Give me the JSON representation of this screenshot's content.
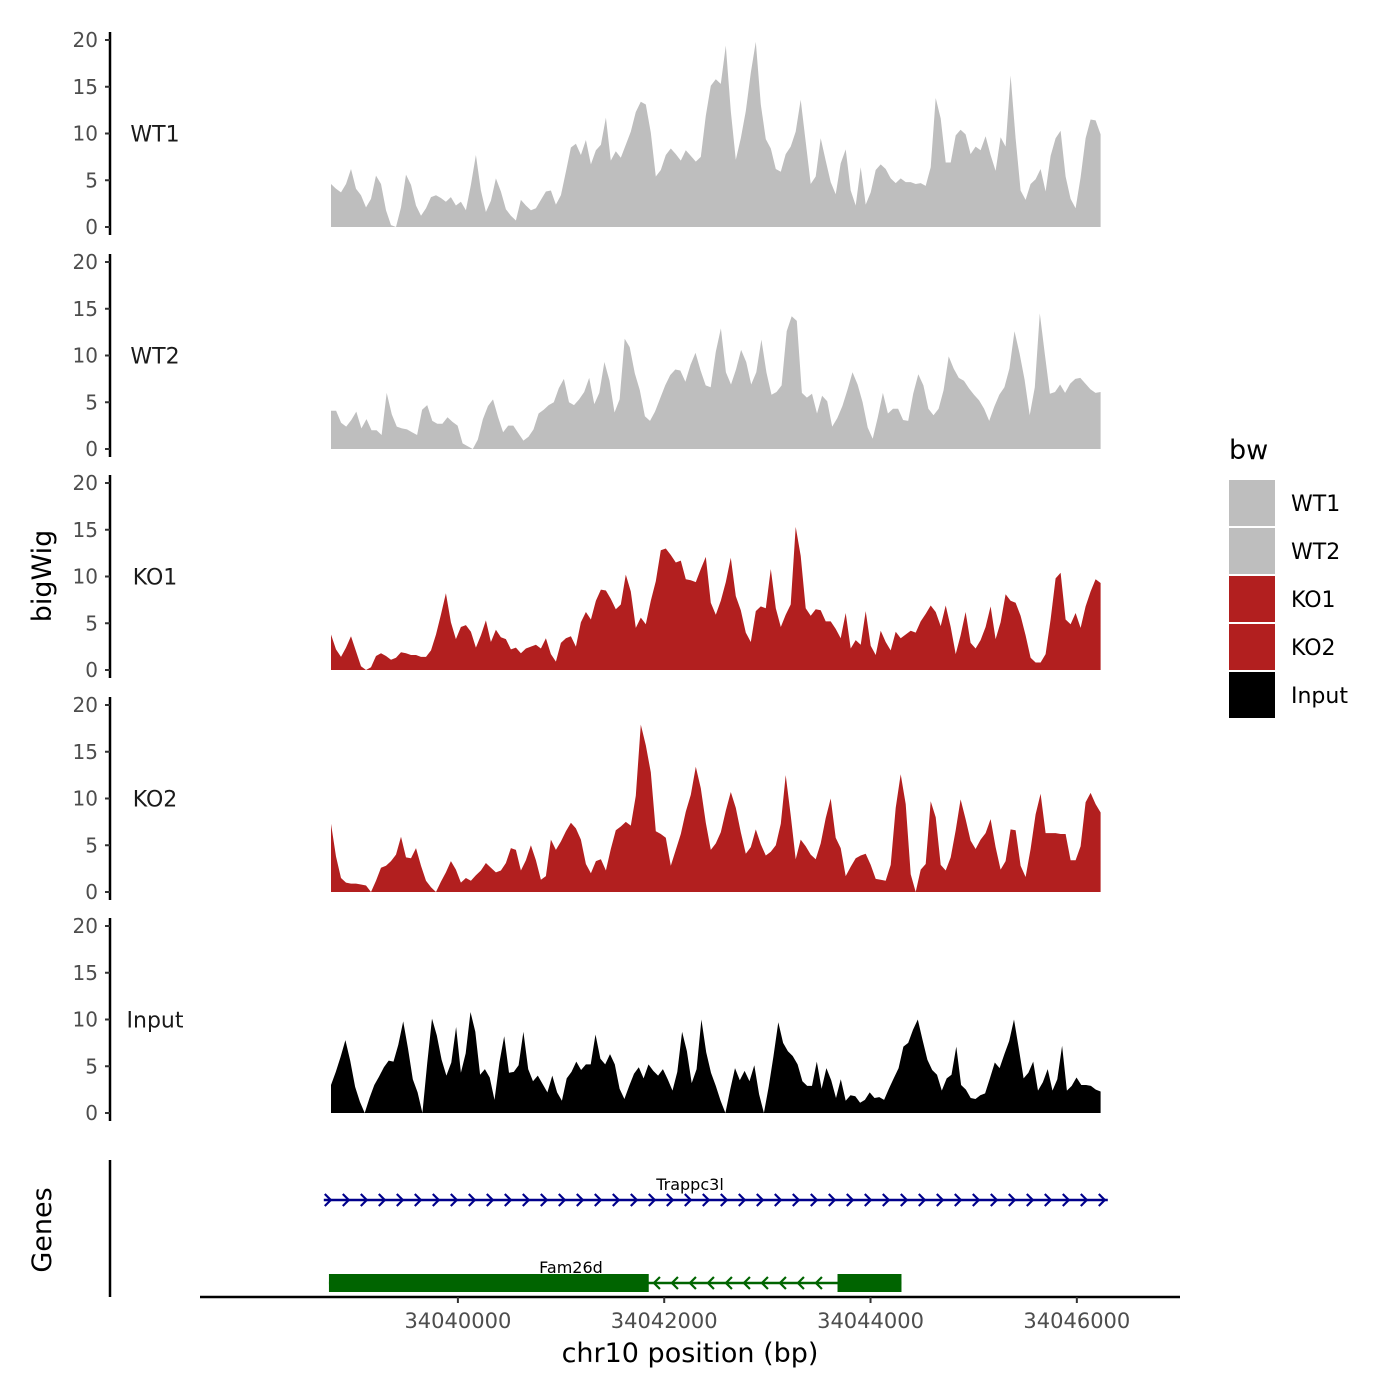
{
  "chart_data": {
    "type": "area",
    "y_axis_title": "bigWig",
    "x_axis_title": "chr10 position (bp)",
    "genes_axis_title": "Genes",
    "x_range": [
      34037500,
      34047000
    ],
    "data_start": 34038770,
    "data_end": 34046230,
    "x_ticks": [
      34040000,
      34042000,
      34044000,
      34046000
    ],
    "y_range": [
      0,
      20
    ],
    "y_ticks": [
      0,
      5,
      10,
      15,
      20
    ],
    "colors": {
      "WT": "#bebebe",
      "KO": "#b21f1f",
      "Input": "#000000",
      "gene_forward": "#00008b",
      "gene_reverse": "#006400"
    },
    "legend": {
      "title": "bw",
      "items": [
        {
          "label": "WT1",
          "color": "#bebebe"
        },
        {
          "label": "WT2",
          "color": "#bebebe"
        },
        {
          "label": "KO1",
          "color": "#b21f1f"
        },
        {
          "label": "KO2",
          "color": "#b21f1f"
        },
        {
          "label": "Input",
          "color": "#000000"
        }
      ]
    },
    "tracks": [
      {
        "name": "WT1",
        "color": "#bebebe",
        "values": [
          4.6,
          4.1,
          3.7,
          4.6,
          6.2,
          4.1,
          3.4,
          2.1,
          3.0,
          5.5,
          4.6,
          1.8,
          0.2,
          0.0,
          2.1,
          5.6,
          4.5,
          2.3,
          1.2,
          2.0,
          3.2,
          3.4,
          3.1,
          2.7,
          3.2,
          2.3,
          2.7,
          1.8,
          4.5,
          7.7,
          3.9,
          1.6,
          2.8,
          5.2,
          3.8,
          1.9,
          1.2,
          0.7,
          2.9,
          2.3,
          1.8,
          2.0,
          2.9,
          3.8,
          3.9,
          2.4,
          3.4,
          5.9,
          8.5,
          8.9,
          7.7,
          9.3,
          6.7,
          8.2,
          8.8,
          11.7,
          7.1,
          8.1,
          7.4,
          8.8,
          10.2,
          12.3,
          13.4,
          13.1,
          10.1,
          5.4,
          6.1,
          7.7,
          8.4,
          7.8,
          7.1,
          8.2,
          7.6,
          7.0,
          7.5,
          11.9,
          15.1,
          15.8,
          15.3,
          19.4,
          12.4,
          7.2,
          9.5,
          12.4,
          16.5,
          19.8,
          13.1,
          9.4,
          8.4,
          6.2,
          5.9,
          7.8,
          8.6,
          10.2,
          13.6,
          9.1,
          4.6,
          5.4,
          9.5,
          7.1,
          4.8,
          3.5,
          6.8,
          8.3,
          3.9,
          2.3,
          6.4,
          2.4,
          3.7,
          6.1,
          6.7,
          6.2,
          5.2,
          4.7,
          5.2,
          4.8,
          4.8,
          4.6,
          4.7,
          4.4,
          6.4,
          13.8,
          11.6,
          6.9,
          6.9,
          9.8,
          10.4,
          9.9,
          7.8,
          8.6,
          8.2,
          9.7,
          7.7,
          6.0,
          9.6,
          8.6,
          16.2,
          9.5,
          3.9,
          2.9,
          4.6,
          5.1,
          6.2,
          3.8,
          7.6,
          9.5,
          10.3,
          5.4,
          3.0,
          2.0,
          5.3,
          9.5,
          11.5,
          11.4,
          9.9
        ]
      },
      {
        "name": "WT2",
        "color": "#bebebe",
        "values": [
          4.1,
          4.1,
          2.8,
          2.4,
          3.1,
          4.0,
          2.2,
          3.2,
          2.0,
          2.0,
          1.5,
          6.0,
          3.7,
          2.4,
          2.2,
          2.1,
          1.8,
          1.5,
          4.2,
          4.7,
          3.0,
          2.7,
          2.7,
          3.4,
          2.9,
          2.5,
          0.6,
          0.3,
          0.0,
          1.0,
          3.2,
          4.6,
          5.3,
          3.4,
          1.8,
          2.5,
          2.5,
          1.7,
          0.9,
          1.3,
          2.1,
          3.8,
          4.2,
          4.7,
          5.0,
          6.5,
          7.5,
          5.0,
          4.7,
          5.3,
          6.1,
          7.6,
          4.8,
          6.0,
          9.3,
          7.3,
          3.9,
          5.3,
          11.8,
          10.9,
          8.1,
          6.3,
          3.5,
          3.0,
          4.0,
          5.4,
          6.8,
          7.9,
          8.5,
          8.4,
          7.2,
          9.0,
          10.3,
          8.4,
          6.8,
          6.6,
          10.4,
          12.9,
          8.2,
          6.9,
          8.5,
          10.6,
          9.3,
          6.9,
          8.2,
          11.7,
          8.2,
          5.8,
          6.1,
          6.8,
          12.6,
          14.2,
          13.7,
          6.0,
          5.5,
          5.9,
          3.8,
          5.7,
          5.1,
          2.4,
          3.3,
          4.6,
          6.3,
          8.2,
          6.9,
          5.0,
          2.3,
          1.1,
          3.4,
          6.0,
          3.8,
          4.3,
          4.3,
          3.1,
          3.0,
          5.9,
          8.0,
          6.8,
          4.3,
          3.6,
          4.3,
          6.3,
          9.9,
          8.6,
          7.6,
          7.3,
          6.5,
          5.8,
          5.2,
          4.3,
          3.0,
          4.5,
          5.8,
          6.6,
          8.6,
          12.6,
          10.2,
          7.4,
          3.6,
          6.6,
          14.5,
          10.1,
          5.9,
          6.1,
          6.9,
          6.0,
          7.0,
          7.5,
          7.6,
          7.0,
          6.4,
          6.0,
          6.1
        ]
      },
      {
        "name": "KO1",
        "color": "#b21f1f",
        "values": [
          3.8,
          2.2,
          1.4,
          2.4,
          3.6,
          2.0,
          0.4,
          0.0,
          0.3,
          1.5,
          1.8,
          1.5,
          1.1,
          1.3,
          1.9,
          1.8,
          1.6,
          1.6,
          1.4,
          1.4,
          2.1,
          3.8,
          5.9,
          8.2,
          5.1,
          3.3,
          4.6,
          4.8,
          4.1,
          2.4,
          3.7,
          5.3,
          3.0,
          4.3,
          3.5,
          3.3,
          2.2,
          2.4,
          1.8,
          2.3,
          2.5,
          2.7,
          2.3,
          3.4,
          1.7,
          0.9,
          2.9,
          3.4,
          3.6,
          2.5,
          5.1,
          6.2,
          5.4,
          7.4,
          8.6,
          8.5,
          7.6,
          6.5,
          7.0,
          10.2,
          8.4,
          4.5,
          5.6,
          4.9,
          7.4,
          9.5,
          12.8,
          13.0,
          12.3,
          11.5,
          11.7,
          9.7,
          9.6,
          9.4,
          10.8,
          12.1,
          7.2,
          5.9,
          7.4,
          9.4,
          12.0,
          7.9,
          6.4,
          4.0,
          3.0,
          6.3,
          6.8,
          6.6,
          10.8,
          6.6,
          4.6,
          5.9,
          7.0,
          15.3,
          12.2,
          6.6,
          5.8,
          6.5,
          6.4,
          5.2,
          5.2,
          4.4,
          3.4,
          6.1,
          2.3,
          3.2,
          2.7,
          6.3,
          2.6,
          1.6,
          4.2,
          3.0,
          2.1,
          4.1,
          3.4,
          3.8,
          4.2,
          4.0,
          5.2,
          6.0,
          6.9,
          6.2,
          4.7,
          6.9,
          4.6,
          1.7,
          3.7,
          6.2,
          2.9,
          2.3,
          3.2,
          4.6,
          6.8,
          3.3,
          5.1,
          8.1,
          7.4,
          7.2,
          5.8,
          3.7,
          1.3,
          0.8,
          0.8,
          1.7,
          5.4,
          9.8,
          10.4,
          5.4,
          4.9,
          6.1,
          4.5,
          6.8,
          8.4,
          9.7,
          9.3
        ]
      },
      {
        "name": "KO2",
        "color": "#b21f1f",
        "values": [
          7.3,
          3.8,
          1.5,
          1.0,
          0.9,
          0.9,
          0.8,
          0.7,
          0.0,
          1.2,
          2.6,
          2.8,
          3.3,
          4.0,
          5.9,
          3.7,
          3.6,
          4.7,
          2.8,
          1.2,
          0.5,
          0.0,
          1.1,
          2.1,
          3.3,
          2.4,
          1.0,
          1.5,
          1.2,
          1.8,
          2.3,
          3.1,
          2.6,
          2.1,
          2.3,
          3.1,
          4.7,
          4.5,
          2.3,
          3.4,
          5.0,
          3.4,
          1.3,
          1.7,
          5.6,
          4.5,
          5.4,
          6.5,
          7.4,
          6.8,
          5.6,
          3.0,
          2.0,
          3.3,
          3.5,
          2.3,
          4.6,
          6.6,
          7.0,
          7.5,
          7.1,
          10.3,
          17.9,
          15.7,
          12.8,
          6.5,
          6.2,
          5.8,
          2.8,
          4.5,
          6.2,
          8.6,
          10.4,
          13.4,
          11.1,
          7.4,
          4.5,
          5.2,
          6.4,
          8.7,
          10.7,
          9.0,
          6.4,
          4.1,
          4.8,
          6.7,
          5.1,
          3.9,
          4.3,
          5.0,
          7.3,
          12.5,
          8.2,
          3.5,
          5.6,
          4.9,
          4.0,
          3.5,
          5.2,
          7.9,
          10.0,
          5.8,
          4.7,
          1.7,
          2.7,
          3.6,
          3.9,
          4.1,
          2.9,
          1.4,
          1.3,
          1.2,
          2.9,
          9.0,
          12.6,
          9.4,
          1.9,
          0.0,
          2.4,
          3.0,
          9.7,
          8.0,
          2.9,
          2.3,
          3.7,
          6.6,
          9.9,
          7.8,
          5.5,
          4.6,
          5.6,
          6.3,
          7.8,
          4.8,
          2.4,
          3.3,
          6.7,
          6.6,
          2.8,
          1.6,
          4.6,
          8.3,
          10.5,
          6.3,
          6.3,
          6.3,
          6.2,
          6.2,
          3.4,
          3.4,
          4.9,
          9.6,
          10.6,
          9.4,
          8.5
        ]
      },
      {
        "name": "Input",
        "color": "#000000",
        "values": [
          3.0,
          4.4,
          6.0,
          7.8,
          5.6,
          2.8,
          1.2,
          0.0,
          1.6,
          3.0,
          3.9,
          4.9,
          5.6,
          5.5,
          7.3,
          9.8,
          6.9,
          3.6,
          2.2,
          0.0,
          5.3,
          10.1,
          8.3,
          5.7,
          4.0,
          5.4,
          9.2,
          4.3,
          6.4,
          10.8,
          8.7,
          4.1,
          4.7,
          3.8,
          1.4,
          5.4,
          8.2,
          4.3,
          4.4,
          5.1,
          8.7,
          4.7,
          3.4,
          4.0,
          3.1,
          2.2,
          4.0,
          2.2,
          1.3,
          3.7,
          4.4,
          5.5,
          4.6,
          5.2,
          5.2,
          8.4,
          5.8,
          5.2,
          6.3,
          5.2,
          2.6,
          1.5,
          2.9,
          4.2,
          4.9,
          3.7,
          5.2,
          4.5,
          4.0,
          4.7,
          3.6,
          2.4,
          4.4,
          8.7,
          6.6,
          3.2,
          4.7,
          10.0,
          6.5,
          4.3,
          2.9,
          1.3,
          0.0,
          2.5,
          4.8,
          3.5,
          4.5,
          3.4,
          5.1,
          2.0,
          0.0,
          2.8,
          6.1,
          9.7,
          7.5,
          6.6,
          6.1,
          5.2,
          3.4,
          2.9,
          2.9,
          5.5,
          2.6,
          4.8,
          3.5,
          1.6,
          3.6,
          1.3,
          1.9,
          1.8,
          1.1,
          1.4,
          2.2,
          1.6,
          1.7,
          1.4,
          2.6,
          3.7,
          4.8,
          7.1,
          7.5,
          8.9,
          10.0,
          7.8,
          5.7,
          4.6,
          4.1,
          2.4,
          3.7,
          4.1,
          7.1,
          3.0,
          2.5,
          1.6,
          1.5,
          1.9,
          2.1,
          3.7,
          5.4,
          4.8,
          6.3,
          7.7,
          10.0,
          6.9,
          3.7,
          4.3,
          5.5,
          2.4,
          3.3,
          4.7,
          2.4,
          3.6,
          7.2,
          2.4,
          2.9,
          3.8,
          3.0,
          3.0,
          2.9,
          2.5,
          2.3
        ]
      }
    ],
    "genes": [
      {
        "name": "Trappc3l",
        "strand": "+",
        "start": 34038700,
        "end": 34046300,
        "color": "#00008b",
        "exons": []
      },
      {
        "name": "Fam26d",
        "strand": "-",
        "start": 34038750,
        "end": 34044300,
        "color": "#006400",
        "exons": [
          [
            34038750,
            34041850
          ],
          [
            34043680,
            34044300
          ]
        ]
      }
    ]
  }
}
